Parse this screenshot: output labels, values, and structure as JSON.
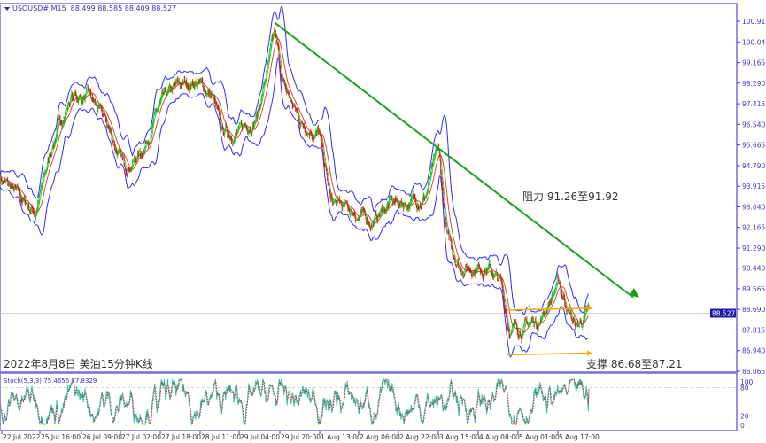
{
  "header": {
    "symbol": "USOUSD#,M15",
    "ohlc": "88.499 88.585 88.409 88.527"
  },
  "annotations": {
    "chart_caption": "2022年8月8日 美油15分钟K线",
    "resistance": "阻力 91.26至91.92",
    "support": "支撑 86.68至87.21"
  },
  "indicator": {
    "label": "Stoch(5,3,3) 75.4656 77.8329"
  },
  "colors": {
    "axis": "#3a3ac8",
    "trendline": "#1aa31a",
    "support_lines": "#ffa500",
    "bands": "#2b2bff",
    "stoch_main": "#20c0b0",
    "stoch_signal": "#e02020",
    "bull": "#18c018",
    "bear": "#e01010"
  },
  "chart_data": [
    {
      "type": "candlestick",
      "title": "",
      "current_price": "88.527",
      "y_ticks": [
        "100.915",
        "100.040",
        "99.165",
        "98.290",
        "97.415",
        "96.540",
        "95.665",
        "94.790",
        "93.915",
        "93.040",
        "92.165",
        "91.290",
        "90.440",
        "89.565",
        "88.690",
        "87.815",
        "86.940",
        "86.065"
      ],
      "ylim": [
        86.065,
        100.915
      ],
      "x_ticks": [
        "22 Jul 2022",
        "25 Jul 16:00",
        "26 Jul 09:00",
        "27 Jul 02:00",
        "27 Jul 18:00",
        "28 Jul 11:00",
        "29 Jul 04:00",
        "29 Jul 20:00",
        "1 Aug 13:00",
        "2 Aug 06:00",
        "2 Aug 22:00",
        "3 Aug 15:00",
        "4 Aug 08:00",
        "5 Aug 01:00",
        "5 Aug 17:00"
      ],
      "price_path": [
        [
          0,
          94.3
        ],
        [
          30,
          93.5
        ],
        [
          60,
          92.8
        ],
        [
          90,
          95.8
        ],
        [
          120,
          97.7
        ],
        [
          150,
          97.7
        ],
        [
          180,
          96.6
        ],
        [
          210,
          94.7
        ],
        [
          240,
          95.4
        ],
        [
          270,
          97.3
        ],
        [
          300,
          98.1
        ],
        [
          330,
          98.4
        ],
        [
          360,
          97.7
        ],
        [
          375,
          96.2
        ],
        [
          405,
          96.2
        ],
        [
          435,
          96.9
        ],
        [
          465,
          100.3
        ],
        [
          480,
          98.1
        ],
        [
          510,
          96.6
        ],
        [
          540,
          96.2
        ],
        [
          560,
          93.2
        ],
        [
          600,
          92.8
        ],
        [
          630,
          92.4
        ],
        [
          660,
          93.2
        ],
        [
          690,
          93.2
        ],
        [
          720,
          93.5
        ],
        [
          742,
          95.4
        ],
        [
          757,
          91.7
        ],
        [
          780,
          90.5
        ],
        [
          825,
          90.5
        ],
        [
          847,
          89.8
        ],
        [
          862,
          87.9
        ],
        [
          885,
          87.9
        ],
        [
          915,
          88.3
        ],
        [
          945,
          89.8
        ],
        [
          975,
          87.9
        ],
        [
          997,
          88.527
        ]
      ],
      "trendline": {
        "from": 100.9,
        "to": 89.2,
        "color": "green"
      },
      "resistance_range": [
        91.26,
        91.92
      ],
      "support_range": [
        86.68,
        87.21
      ],
      "support_channel": [
        {
          "price": 88.7
        },
        {
          "price": 86.8
        }
      ]
    },
    {
      "type": "line",
      "title": "Stoch(5,3,3)",
      "series": [
        {
          "name": "main",
          "last": 75.4656
        },
        {
          "name": "signal",
          "last": 77.8329
        }
      ],
      "y_ticks": [
        "100",
        "80",
        "20",
        "0"
      ],
      "ylim": [
        0,
        100
      ]
    }
  ]
}
